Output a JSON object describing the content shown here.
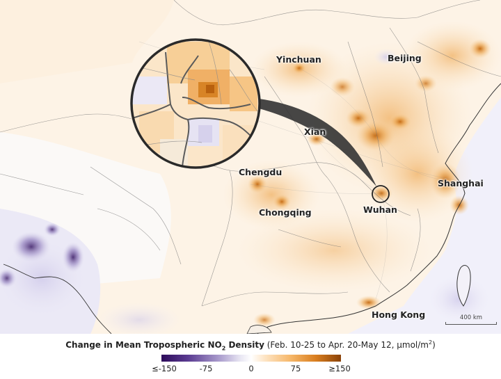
{
  "map": {
    "cities": [
      {
        "name": "Yinchuan"
      },
      {
        "name": "Beijing"
      },
      {
        "name": "Xian"
      },
      {
        "name": "Chengdu"
      },
      {
        "name": "Chongqing"
      },
      {
        "name": "Wuhan"
      },
      {
        "name": "Shanghai"
      },
      {
        "name": "Hong Kong"
      }
    ],
    "scale_label": "400 km"
  },
  "legend": {
    "title_bold": "Change in Mean Tropospheric NO",
    "title_sub": "2",
    "title_bold_tail": " Density",
    "title_rest": " (Feb. 10-25 to Apr. 20-May 12, μmol/m",
    "title_sup": "2",
    "title_end": ")",
    "ticks": [
      "≤-150",
      "-75",
      "0",
      "75",
      "≥150"
    ],
    "colors": {
      "min": "#2d0b5a",
      "mid": "#ffffff",
      "max": "#8a4208"
    }
  }
}
